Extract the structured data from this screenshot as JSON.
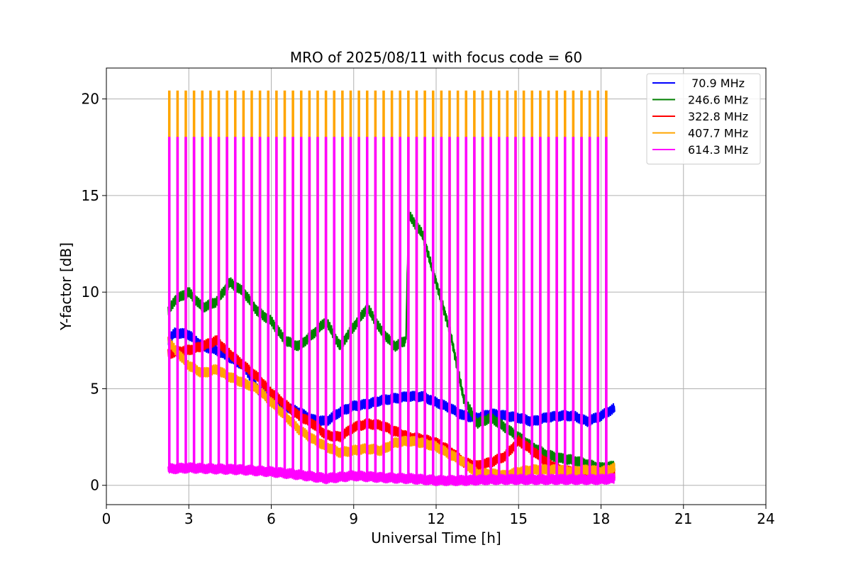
{
  "chart_data": {
    "type": "line",
    "title": "MRO of 2025/08/11 with focus code = 60",
    "xlabel": "Universal Time [h]",
    "ylabel": "Y-factor [dB]",
    "xlim": [
      0,
      24
    ],
    "ylim": [
      -1,
      21.6
    ],
    "xticks": [
      0,
      3,
      6,
      9,
      12,
      15,
      18,
      21,
      24
    ],
    "yticks": [
      0,
      5,
      10,
      15,
      20
    ],
    "grid": true,
    "legend_position": "top-right",
    "spike_period_h": 0.3,
    "series": [
      {
        "name": " 70.9 MHz",
        "color": "#0000ff",
        "x": [
          2.25,
          2.5,
          3.0,
          3.5,
          4.0,
          4.5,
          5.0,
          5.5,
          6.0,
          6.5,
          7.0,
          7.5,
          8.0,
          8.5,
          9.0,
          9.5,
          10.0,
          10.5,
          11.0,
          11.5,
          12.0,
          12.5,
          13.0,
          13.5,
          14.0,
          14.5,
          15.0,
          15.5,
          16.0,
          16.5,
          17.0,
          17.5,
          18.0,
          18.5
        ],
        "y": [
          7.5,
          7.9,
          7.8,
          7.2,
          7.0,
          6.6,
          6.2,
          5.0,
          4.4,
          4.1,
          3.8,
          3.4,
          3.3,
          3.8,
          4.1,
          4.2,
          4.4,
          4.5,
          4.6,
          4.6,
          4.3,
          4.0,
          3.6,
          3.5,
          3.7,
          3.6,
          3.5,
          3.3,
          3.5,
          3.6,
          3.6,
          3.3,
          3.6,
          4.0
        ]
      },
      {
        "name": "246.6 MHz",
        "color": "#008000",
        "x": [
          2.25,
          2.5,
          3.0,
          3.5,
          4.0,
          4.5,
          5.0,
          5.5,
          6.0,
          6.5,
          7.0,
          7.5,
          8.0,
          8.5,
          9.0,
          9.5,
          10.0,
          10.5,
          10.9,
          11.0,
          11.5,
          12.0,
          12.5,
          13.0,
          13.5,
          14.0,
          14.5,
          15.0,
          15.5,
          16.0,
          16.5,
          17.0,
          17.5,
          18.0,
          18.5
        ],
        "y": [
          9.0,
          9.6,
          10.0,
          9.2,
          9.5,
          10.5,
          10.0,
          9.0,
          8.5,
          7.5,
          7.2,
          7.8,
          8.5,
          7.2,
          8.2,
          9.2,
          8.0,
          7.2,
          7.5,
          14.0,
          13.0,
          10.5,
          8.0,
          4.5,
          3.2,
          3.5,
          3.0,
          2.5,
          2.0,
          1.6,
          1.4,
          1.3,
          1.1,
          0.9,
          1.0
        ]
      },
      {
        "name": "322.8 MHz",
        "color": "#ff0000",
        "x": [
          2.25,
          2.5,
          3.0,
          3.5,
          4.0,
          4.5,
          5.0,
          5.5,
          6.0,
          6.5,
          7.0,
          7.5,
          8.0,
          8.5,
          9.0,
          9.5,
          10.0,
          10.5,
          11.0,
          11.5,
          12.0,
          12.5,
          13.0,
          13.5,
          14.0,
          14.5,
          15.0,
          15.5,
          16.0,
          16.5,
          17.0,
          17.5,
          18.0,
          18.5
        ],
        "y": [
          6.8,
          6.9,
          7.0,
          7.2,
          7.5,
          6.8,
          6.2,
          5.6,
          4.8,
          4.2,
          3.6,
          3.2,
          2.6,
          2.5,
          3.0,
          3.2,
          3.1,
          2.8,
          2.5,
          2.4,
          2.2,
          1.8,
          1.2,
          1.0,
          1.2,
          1.5,
          2.3,
          1.8,
          1.2,
          0.8,
          0.7,
          0.6,
          0.5,
          0.6
        ]
      },
      {
        "name": "407.7 MHz",
        "color": "#ffa500",
        "x": [
          2.25,
          2.5,
          3.0,
          3.5,
          4.0,
          4.5,
          5.0,
          5.5,
          6.0,
          6.5,
          7.0,
          7.5,
          8.0,
          8.5,
          9.0,
          9.5,
          10.0,
          10.5,
          11.0,
          11.5,
          12.0,
          12.5,
          13.0,
          13.5,
          14.0,
          14.5,
          15.0,
          15.5,
          16.0,
          16.5,
          17.0,
          17.5,
          18.0,
          18.5
        ],
        "y": [
          7.5,
          7.0,
          6.2,
          5.8,
          6.0,
          5.6,
          5.3,
          5.0,
          4.3,
          3.6,
          2.9,
          2.4,
          2.0,
          1.7,
          1.8,
          1.9,
          1.8,
          2.2,
          2.3,
          2.2,
          2.0,
          1.6,
          1.2,
          0.6,
          0.6,
          0.5,
          0.7,
          0.8,
          0.8,
          0.8,
          0.7,
          0.8,
          0.7,
          0.9
        ]
      },
      {
        "name": "614.3 MHz",
        "color": "#ff00ff",
        "x": [
          2.25,
          3.0,
          4.0,
          5.0,
          6.0,
          7.0,
          8.0,
          9.0,
          10.0,
          11.0,
          12.0,
          13.0,
          14.0,
          15.0,
          16.0,
          17.0,
          18.0,
          18.5
        ],
        "y": [
          0.85,
          0.9,
          0.85,
          0.8,
          0.7,
          0.55,
          0.35,
          0.5,
          0.4,
          0.35,
          0.25,
          0.25,
          0.3,
          0.3,
          0.3,
          0.3,
          0.3,
          0.35
        ]
      }
    ]
  }
}
